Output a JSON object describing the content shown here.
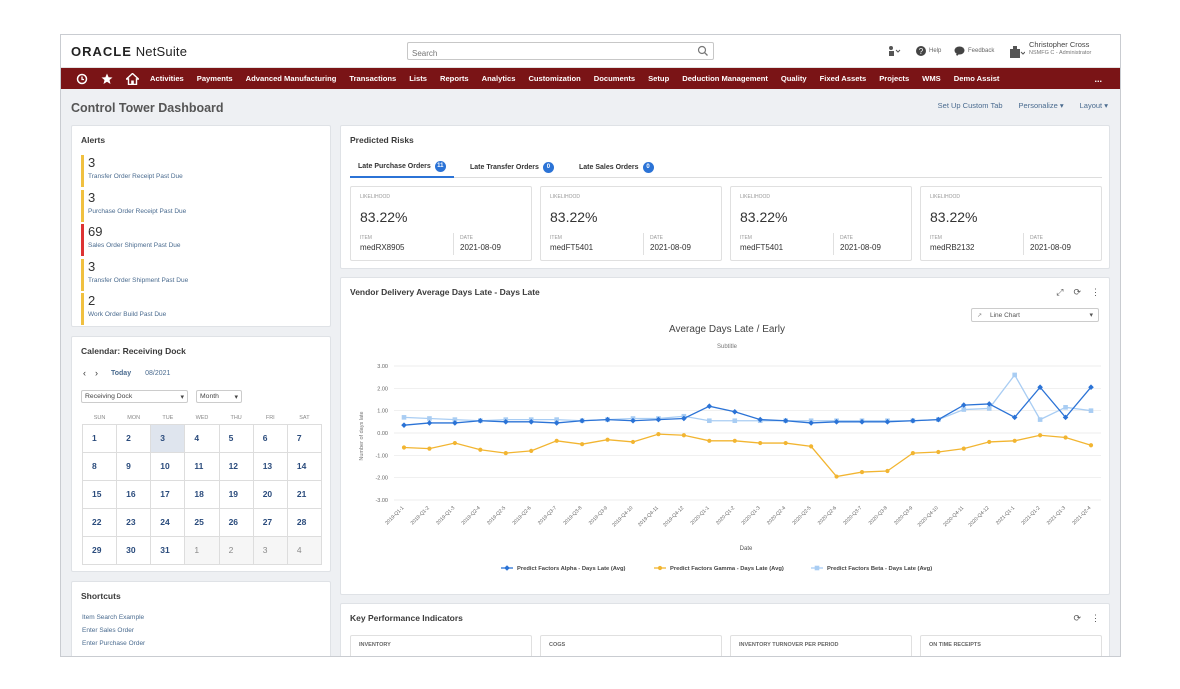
{
  "brand": {
    "oracle": "ORACLE",
    "netsuite": " NetSuite"
  },
  "search": {
    "placeholder": "Search"
  },
  "toolbar": {
    "help": "Help",
    "feedback": "Feedback"
  },
  "user": {
    "name": "Christopher Cross",
    "role": "NSMFG C - Administrator"
  },
  "nav": {
    "items": [
      "Activities",
      "Payments",
      "Advanced Manufacturing",
      "Transactions",
      "Lists",
      "Reports",
      "Analytics",
      "Customization",
      "Documents",
      "Setup",
      "Deduction Management",
      "Quality",
      "Fixed Assets",
      "Projects",
      "WMS",
      "Demo Assist"
    ],
    "more": "..."
  },
  "page": {
    "title": "Control Tower Dashboard",
    "actions": {
      "custom_tab": "Set Up Custom Tab",
      "personalize": "Personalize",
      "layout": "Layout"
    }
  },
  "alerts": {
    "title": "Alerts",
    "items": [
      {
        "count": "3",
        "label": "Transfer Order Receipt Past Due",
        "color": "#f0c040"
      },
      {
        "count": "3",
        "label": "Purchase Order Receipt Past Due",
        "color": "#f0c040"
      },
      {
        "count": "69",
        "label": "Sales Order Shipment Past Due",
        "color": "#dd3333"
      },
      {
        "count": "3",
        "label": "Transfer Order Shipment Past Due",
        "color": "#f0c040"
      },
      {
        "count": "2",
        "label": "Work Order Build Past Due",
        "color": "#f0c040"
      }
    ]
  },
  "calendar": {
    "title": "Calendar: Receiving Dock",
    "today": "Today",
    "month_label": "08/2021",
    "location": "Receiving Dock",
    "view": "Month",
    "days": [
      "SUN",
      "MON",
      "TUE",
      "WED",
      "THU",
      "FRI",
      "SAT"
    ],
    "weeks": [
      [
        "1",
        "2",
        "3",
        "4",
        "5",
        "6",
        "7"
      ],
      [
        "8",
        "9",
        "10",
        "11",
        "12",
        "13",
        "14"
      ],
      [
        "15",
        "16",
        "17",
        "18",
        "19",
        "20",
        "21"
      ],
      [
        "22",
        "23",
        "24",
        "25",
        "26",
        "27",
        "28"
      ],
      [
        "29",
        "30",
        "31",
        "1",
        "2",
        "3",
        "4"
      ]
    ]
  },
  "shortcuts": {
    "title": "Shortcuts",
    "items": [
      "Item Search Example",
      "Enter Sales Order",
      "Enter Purchase Order"
    ]
  },
  "predicted_risks": {
    "title": "Predicted Risks",
    "tabs": [
      {
        "label": "Late Purchase Orders",
        "count": "11"
      },
      {
        "label": "Late Transfer Orders",
        "count": "0"
      },
      {
        "label": "Late Sales Orders",
        "count": "0"
      }
    ],
    "field_labels": {
      "likelihood": "LIKELIHOOD",
      "item": "ITEM",
      "date": "DATE"
    },
    "cards": [
      {
        "likelihood": "83.22%",
        "item": "medRX8905",
        "date": "2021-08-09"
      },
      {
        "likelihood": "83.22%",
        "item": "medFT5401",
        "date": "2021-08-09"
      },
      {
        "likelihood": "83.22%",
        "item": "medFT5401",
        "date": "2021-08-09"
      },
      {
        "likelihood": "83.22%",
        "item": "medRB2132",
        "date": "2021-08-09"
      }
    ]
  },
  "chart_card": {
    "title": "Vendor Delivery Average Days Late - Days Late",
    "chart_type": "Line Chart"
  },
  "chart_data": {
    "type": "line",
    "title": "Average Days Late / Early",
    "subtitle": "Subtitle",
    "xlabel": "Date",
    "ylabel": "Number of days late",
    "ylim": [
      -3,
      3
    ],
    "yticks": [
      "3.00",
      "2.00",
      "1.00",
      "0.00",
      "-1.00",
      "-2.00",
      "-3.00"
    ],
    "grid": true,
    "legend_position": "bottom",
    "categories": [
      "2019-Q1-1",
      "2019-Q1-2",
      "2019-Q1-3",
      "2019-Q2-4",
      "2019-Q2-5",
      "2019-Q2-6",
      "2019-Q3-7",
      "2019-Q3-8",
      "2019-Q3-9",
      "2019-Q4-10",
      "2019-Q4-11",
      "2019-Q4-12",
      "2020-Q1-1",
      "2020-Q1-2",
      "2020-Q1-3",
      "2020-Q2-4",
      "2020-Q2-5",
      "2020-Q2-6",
      "2020-Q3-7",
      "2020-Q3-8",
      "2020-Q3-9",
      "2020-Q4-10",
      "2020-Q4-11",
      "2020-Q4-12",
      "2021-Q1-1",
      "2021-Q1-2",
      "2021-Q1-3",
      "2021-Q2-4"
    ],
    "series": [
      {
        "name": "Predict Factors Alpha - Days Late (Avg)",
        "color": "#2b73d6",
        "marker": "diamond",
        "values": [
          0.35,
          0.45,
          0.45,
          0.55,
          0.5,
          0.5,
          0.45,
          0.55,
          0.6,
          0.55,
          0.6,
          0.65,
          1.2,
          0.95,
          0.6,
          0.55,
          0.45,
          0.5,
          0.5,
          0.5,
          0.55,
          0.6,
          1.25,
          1.3,
          0.7,
          2.05,
          0.7,
          2.05
        ]
      },
      {
        "name": "Predict Factors Gamma - Days Late (Avg)",
        "color": "#f2b531",
        "marker": "circle",
        "values": [
          -0.65,
          -0.7,
          -0.45,
          -0.75,
          -0.9,
          -0.8,
          -0.35,
          -0.5,
          -0.3,
          -0.4,
          -0.05,
          -0.1,
          -0.35,
          -0.35,
          -0.45,
          -0.45,
          -0.6,
          -1.95,
          -1.75,
          -1.7,
          -0.9,
          -0.85,
          -0.7,
          -0.4,
          -0.35,
          -0.1,
          -0.2,
          -0.55
        ]
      },
      {
        "name": "Predict Factors Beta - Days Late (Avg)",
        "color": "#a9cdf3",
        "marker": "square",
        "values": [
          0.7,
          0.65,
          0.6,
          0.55,
          0.6,
          0.6,
          0.6,
          0.55,
          0.6,
          0.65,
          0.65,
          0.75,
          0.55,
          0.55,
          0.55,
          0.55,
          0.55,
          0.55,
          0.55,
          0.55,
          0.55,
          0.6,
          1.05,
          1.1,
          2.6,
          0.6,
          1.15,
          1.0
        ]
      }
    ]
  },
  "kpi": {
    "title": "Key Performance Indicators",
    "cards": [
      "INVENTORY",
      "COGS",
      "INVENTORY TURNOVER PER PERIOD",
      "ON TIME RECEIPTS"
    ]
  }
}
